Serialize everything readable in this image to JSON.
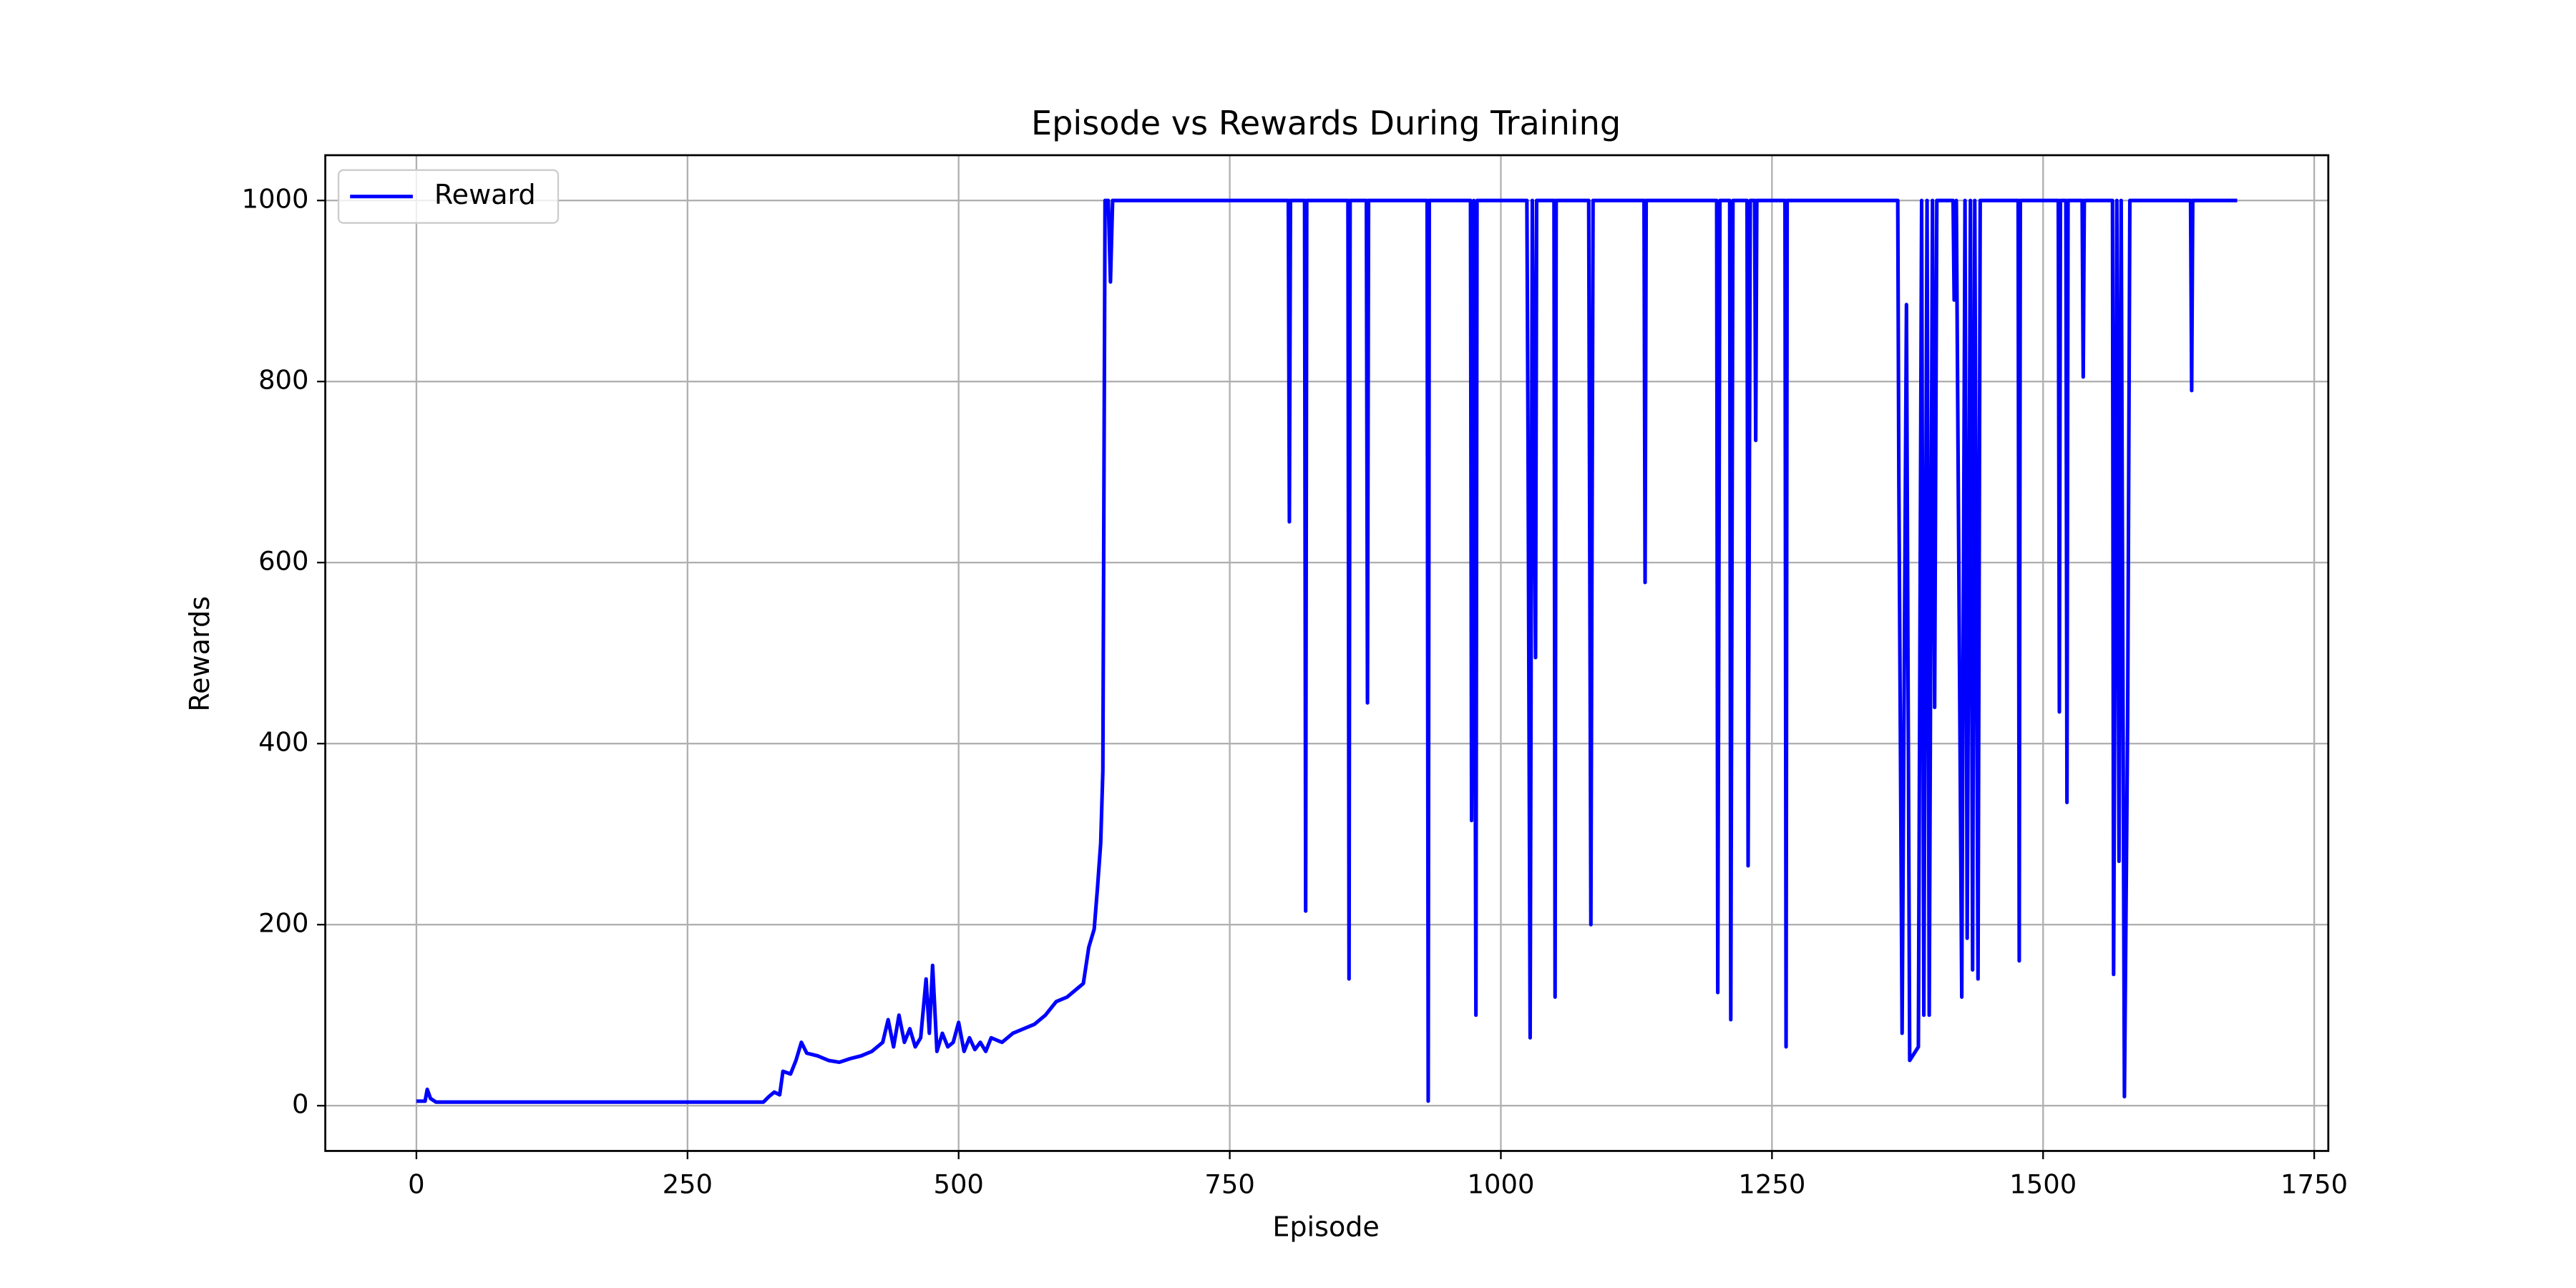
{
  "chart_data": {
    "type": "line",
    "title": "Episode vs Rewards During Training",
    "x_label": "Episode",
    "y_label": "Rewards",
    "x": [
      0,
      8,
      10,
      13,
      18,
      320,
      325,
      330,
      335,
      338,
      345,
      350,
      355,
      360,
      370,
      380,
      390,
      400,
      410,
      420,
      430,
      435,
      440,
      445,
      450,
      455,
      460,
      465,
      470,
      473,
      476,
      480,
      485,
      490,
      495,
      500,
      505,
      510,
      515,
      520,
      525,
      530,
      540,
      550,
      560,
      570,
      580,
      590,
      600,
      610,
      615,
      620,
      625,
      628,
      631,
      633,
      635,
      638,
      640,
      642,
      804,
      805,
      806,
      819,
      820,
      821,
      859,
      860,
      861,
      876,
      877,
      878,
      932,
      933,
      934,
      972,
      973,
      975,
      977,
      978,
      1024,
      1025,
      1027,
      1029,
      1032,
      1033,
      1049,
      1050,
      1051,
      1081,
      1083,
      1085,
      1132,
      1133,
      1134,
      1199,
      1200,
      1202,
      1211,
      1212,
      1214,
      1227,
      1228,
      1230,
      1234,
      1235,
      1236,
      1262,
      1263,
      1264,
      1366,
      1367,
      1370,
      1374,
      1377,
      1385,
      1388,
      1390,
      1393,
      1395,
      1398,
      1400,
      1402,
      1417,
      1418,
      1420,
      1425,
      1428,
      1430,
      1433,
      1435,
      1437,
      1440,
      1442,
      1477,
      1478,
      1479,
      1514,
      1515,
      1516,
      1521,
      1522,
      1523,
      1536,
      1537,
      1538,
      1564,
      1565,
      1568,
      1570,
      1572,
      1575,
      1578,
      1580,
      1636,
      1637,
      1638,
      1679
    ],
    "series": [
      {
        "name": "Reward",
        "color": "#0000ff",
        "values": [
          5,
          5,
          18,
          8,
          4,
          4,
          10,
          15,
          12,
          38,
          35,
          50,
          70,
          58,
          55,
          50,
          48,
          52,
          55,
          60,
          70,
          95,
          65,
          100,
          70,
          85,
          65,
          75,
          140,
          80,
          155,
          60,
          80,
          65,
          70,
          92,
          60,
          75,
          62,
          70,
          60,
          75,
          70,
          80,
          85,
          90,
          100,
          115,
          120,
          130,
          135,
          175,
          195,
          240,
          290,
          370,
          1000,
          1000,
          910,
          1000,
          1000,
          645,
          1000,
          1000,
          215,
          1000,
          1000,
          140,
          1000,
          1000,
          445,
          1000,
          1000,
          5,
          1000,
          1000,
          315,
          1000,
          100,
          1000,
          1000,
          750,
          75,
          1000,
          495,
          1000,
          1000,
          120,
          1000,
          1000,
          200,
          1000,
          1000,
          578,
          1000,
          1000,
          125,
          1000,
          1000,
          95,
          1000,
          1000,
          265,
          1000,
          1000,
          735,
          1000,
          1000,
          65,
          1000,
          1000,
          690,
          80,
          885,
          50,
          65,
          1000,
          100,
          1000,
          100,
          1000,
          440,
          1000,
          1000,
          890,
          1000,
          120,
          1000,
          185,
          1000,
          150,
          1000,
          140,
          1000,
          1000,
          160,
          1000,
          1000,
          435,
          1000,
          1000,
          335,
          1000,
          1000,
          805,
          1000,
          1000,
          145,
          1000,
          270,
          1000,
          10,
          430,
          1000,
          1000,
          790,
          1000,
          1000
        ]
      }
    ],
    "xlim": [
      -84,
      1763
    ],
    "ylim": [
      -50,
      1050
    ],
    "xticks": [
      0,
      250,
      500,
      750,
      1000,
      1250,
      1500,
      1750
    ],
    "yticks": [
      0,
      200,
      400,
      600,
      800,
      1000
    ],
    "grid": true,
    "legend": "upper left"
  }
}
